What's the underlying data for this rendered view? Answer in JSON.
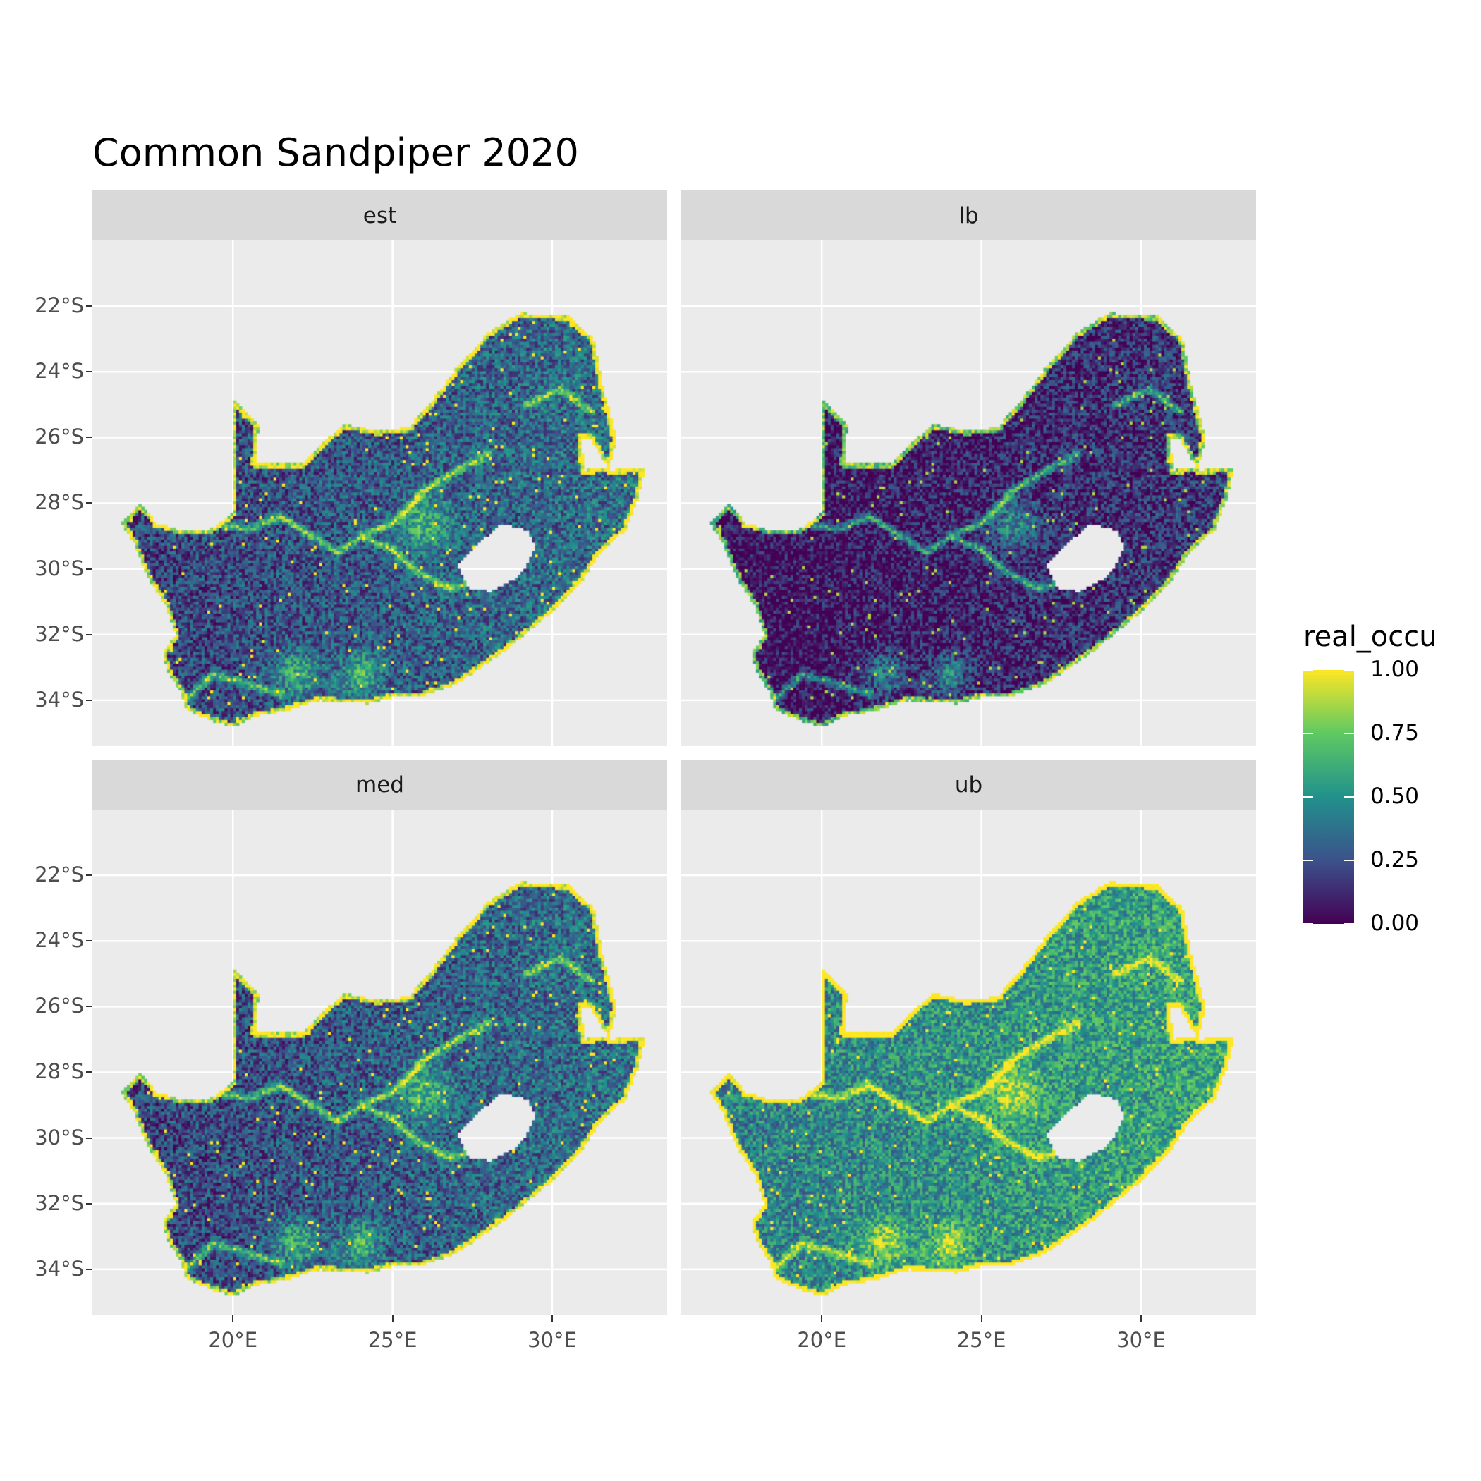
{
  "title": "Common Sandpiper 2020",
  "chart_data": {
    "type": "heatmap",
    "title": "Common Sandpiper 2020",
    "facets": [
      "est",
      "lb",
      "med",
      "ub"
    ],
    "x_ticks": [
      "20°E",
      "25°E",
      "30°E"
    ],
    "x_tick_values": [
      20,
      25,
      30
    ],
    "y_ticks": [
      "22°S",
      "24°S",
      "26°S",
      "28°S",
      "30°S",
      "32°S",
      "34°S"
    ],
    "y_tick_values": [
      -22,
      -24,
      -26,
      -28,
      -30,
      -32,
      -34
    ],
    "xlim": [
      15.6,
      33.6
    ],
    "ylim": [
      -35.4,
      -20.0
    ],
    "legend": {
      "title": "real_occu",
      "labels": [
        "1.00",
        "0.75",
        "0.50",
        "0.25",
        "0.00"
      ],
      "values": [
        1.0,
        0.75,
        0.5,
        0.25,
        0.0
      ],
      "colormap": "viridis",
      "position": "right"
    },
    "region_outline_lonlat": [
      [
        16.5,
        -28.6
      ],
      [
        17.1,
        -28.0
      ],
      [
        17.6,
        -28.6
      ],
      [
        18.3,
        -28.8
      ],
      [
        19.3,
        -28.8
      ],
      [
        20.0,
        -28.3
      ],
      [
        20.0,
        -24.8
      ],
      [
        20.8,
        -25.6
      ],
      [
        20.7,
        -26.8
      ],
      [
        22.2,
        -26.8
      ],
      [
        23.0,
        -26.0
      ],
      [
        23.5,
        -25.6
      ],
      [
        24.5,
        -25.8
      ],
      [
        25.5,
        -25.7
      ],
      [
        26.3,
        -24.8
      ],
      [
        27.0,
        -23.9
      ],
      [
        28.0,
        -22.8
      ],
      [
        29.0,
        -22.2
      ],
      [
        30.5,
        -22.3
      ],
      [
        31.3,
        -23.0
      ],
      [
        31.6,
        -24.5
      ],
      [
        32.0,
        -26.0
      ],
      [
        31.8,
        -26.9
      ],
      [
        31.0,
        -27.0
      ],
      [
        30.9,
        -26.0
      ],
      [
        31.2,
        -26.0
      ],
      [
        31.8,
        -27.0
      ],
      [
        32.9,
        -26.9
      ],
      [
        32.7,
        -27.8
      ],
      [
        32.3,
        -28.8
      ],
      [
        31.5,
        -29.5
      ],
      [
        30.9,
        -30.4
      ],
      [
        30.0,
        -31.3
      ],
      [
        28.5,
        -32.5
      ],
      [
        27.0,
        -33.5
      ],
      [
        25.8,
        -33.9
      ],
      [
        25.0,
        -33.9
      ],
      [
        24.2,
        -34.1
      ],
      [
        22.7,
        -34.0
      ],
      [
        21.7,
        -34.3
      ],
      [
        20.6,
        -34.5
      ],
      [
        20.0,
        -34.8
      ],
      [
        19.3,
        -34.6
      ],
      [
        18.8,
        -34.4
      ],
      [
        18.5,
        -34.2
      ],
      [
        18.4,
        -33.8
      ],
      [
        18.0,
        -33.2
      ],
      [
        17.8,
        -32.6
      ],
      [
        18.2,
        -32.0
      ],
      [
        17.9,
        -31.1
      ],
      [
        17.3,
        -30.2
      ],
      [
        16.9,
        -29.2
      ]
    ],
    "hole_outline_lonlat": [
      [
        27.0,
        -29.9
      ],
      [
        27.6,
        -29.3
      ],
      [
        28.4,
        -28.6
      ],
      [
        29.2,
        -28.8
      ],
      [
        29.5,
        -29.3
      ],
      [
        29.2,
        -29.9
      ],
      [
        28.7,
        -30.4
      ],
      [
        28.1,
        -30.7
      ],
      [
        27.4,
        -30.6
      ]
    ],
    "rivers_lonlat": [
      [
        [
          17.6,
          -28.7
        ],
        [
          19.0,
          -28.5
        ],
        [
          20.5,
          -28.8
        ],
        [
          21.5,
          -28.4
        ],
        [
          22.5,
          -29.0
        ],
        [
          23.3,
          -29.5
        ],
        [
          24.0,
          -29.0
        ],
        [
          25.0,
          -28.6
        ],
        [
          26.0,
          -27.6
        ],
        [
          27.0,
          -27.0
        ],
        [
          28.0,
          -26.5
        ]
      ],
      [
        [
          24.0,
          -29.0
        ],
        [
          25.0,
          -29.4
        ],
        [
          25.8,
          -30.1
        ],
        [
          26.8,
          -30.6
        ],
        [
          27.5,
          -30.4
        ]
      ],
      [
        [
          29.2,
          -25.0
        ],
        [
          30.3,
          -24.5
        ],
        [
          31.2,
          -25.2
        ]
      ],
      [
        [
          18.6,
          -33.9
        ],
        [
          19.4,
          -33.2
        ],
        [
          20.5,
          -33.5
        ],
        [
          21.5,
          -33.8
        ]
      ]
    ],
    "value_range": [
      0.0,
      1.0
    ],
    "facet_mean_levels": {
      "est": 0.35,
      "lb": 0.22,
      "med": 0.36,
      "ub": 0.55
    }
  }
}
